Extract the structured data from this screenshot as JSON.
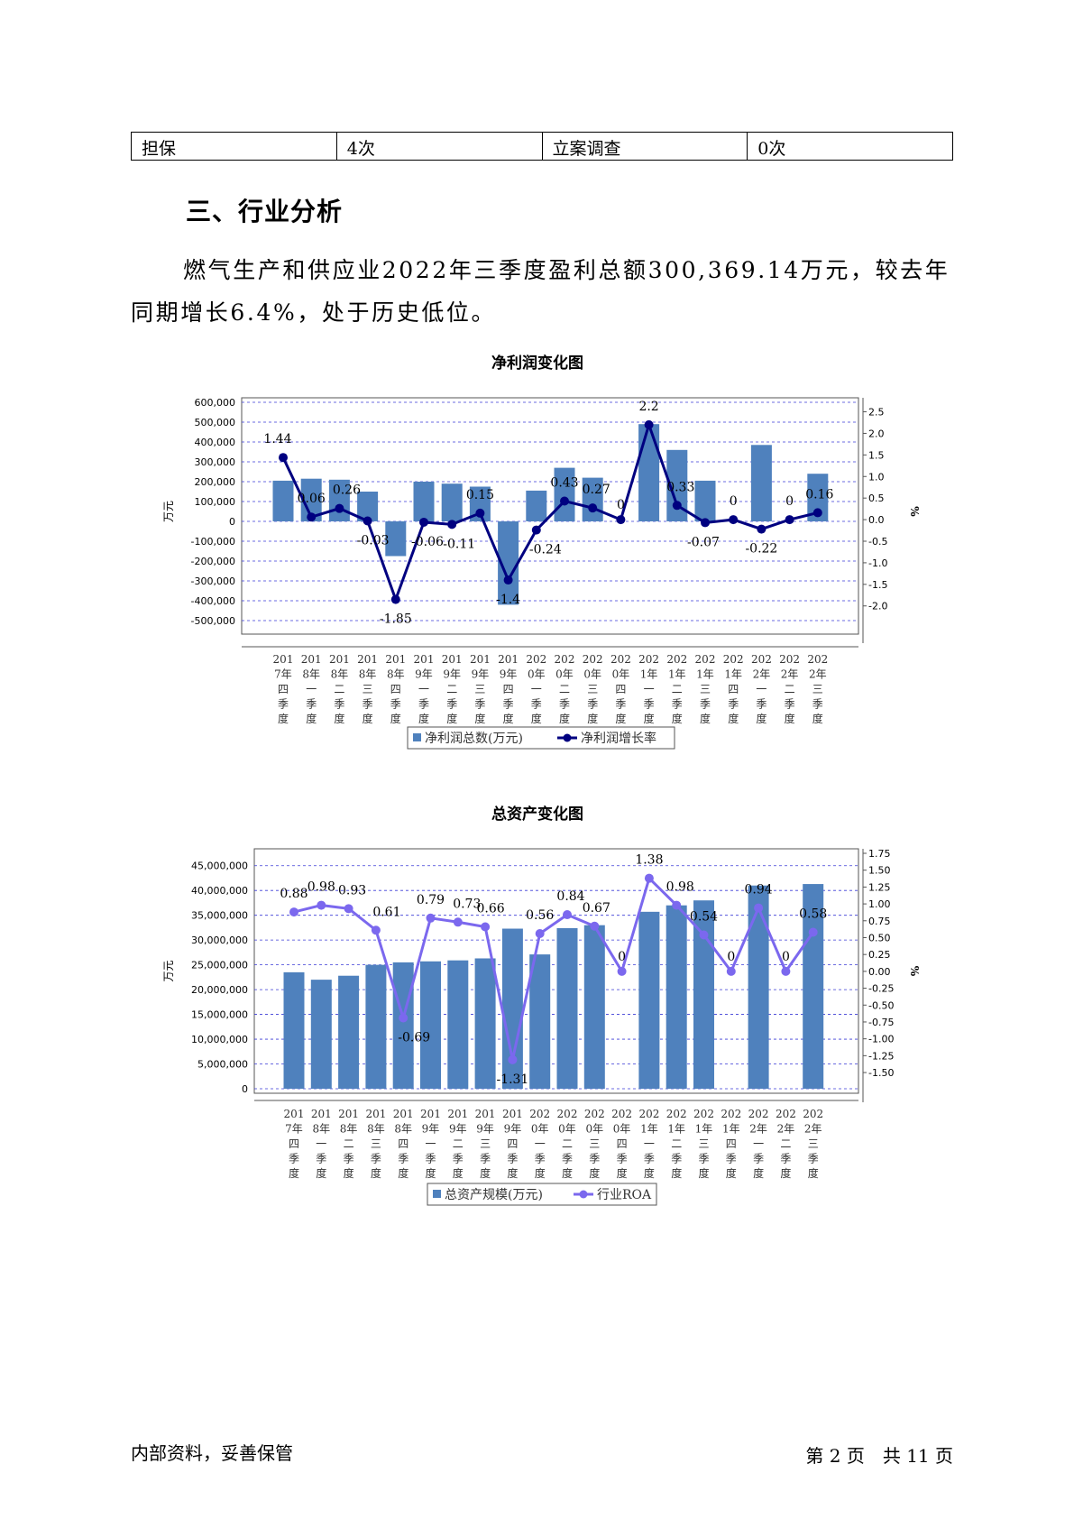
{
  "table": {
    "cells": [
      "担保",
      "4次",
      "立案调查",
      "0次"
    ]
  },
  "section": {
    "title": "三、行业分析",
    "paragraph": "燃气生产和供应业2022年三季度盈利总额300,369.14万元，较去年同期增长6.4%，处于历史低位。"
  },
  "footer": {
    "left": "内部资料，妥善保管",
    "page_prefix": "第",
    "page_num": "2",
    "page_mid": "页　共",
    "page_total": "11",
    "page_suffix": "页"
  },
  "chart_data": [
    {
      "type": "bar+line",
      "title": "净利润变化图",
      "ylabel": "万元",
      "y2label": "%",
      "categories": [
        "2017年四季度",
        "2018年一季度",
        "2018年二季度",
        "2018年三季度",
        "2018年四季度",
        "2019年一季度",
        "2019年二季度",
        "2019年三季度",
        "2019年四季度",
        "2020年一季度",
        "2020年二季度",
        "2020年三季度",
        "2020年四季度",
        "2021年一季度",
        "2021年二季度",
        "2021年三季度",
        "2021年四季度",
        "2022年一季度",
        "2022年二季度",
        "2022年三季度"
      ],
      "ylim": [
        -500000,
        600000
      ],
      "y_ticks": [
        600000,
        500000,
        400000,
        300000,
        200000,
        100000,
        0,
        -100000,
        -200000,
        -300000,
        -400000,
        -500000
      ],
      "y_tick_labels": [
        "600,000",
        "500,000",
        "400,000",
        "300,000",
        "200,000",
        "100,000",
        "0",
        "-100,000",
        "-200,000",
        "-300,000",
        "-400,000",
        "-500,000"
      ],
      "y2lim": [
        -2.34,
        2.72
      ],
      "y2_ticks": [
        2.5,
        2.0,
        1.5,
        1.0,
        0.5,
        0.0,
        -0.5,
        -1.0,
        -1.5,
        -2.0
      ],
      "y2_tick_labels": [
        "2.5",
        "2.0",
        "1.5",
        "1.0",
        "0.5",
        "0.0",
        "-0.5",
        "-1.0",
        "-1.5",
        "-2.0"
      ],
      "series": [
        {
          "name": "净利润总数(万元)",
          "kind": "bar",
          "color": "#4f81bd",
          "values": [
            205000,
            215000,
            210000,
            150000,
            -175000,
            200000,
            190000,
            175000,
            -420000,
            155000,
            270000,
            220000,
            0,
            490000,
            360000,
            205000,
            0,
            385000,
            0,
            240000
          ]
        },
        {
          "name": "净利润增长率",
          "kind": "line",
          "color": "#000080",
          "values": [
            1.44,
            0.06,
            0.26,
            -0.03,
            -1.85,
            -0.06,
            -0.11,
            0.15,
            -1.4,
            -0.24,
            0.43,
            0.27,
            0,
            2.2,
            0.33,
            -0.07,
            0,
            -0.22,
            0,
            0.16
          ],
          "labels": [
            "1.44",
            "0.06",
            "0.26",
            "-0.03",
            "-1.85",
            "-0.06",
            "-0.11",
            "0.15",
            "-1.4",
            "-0.24",
            "0.43",
            "0.27",
            "0",
            "2.2",
            "0.33",
            "-0.07",
            "0",
            "-0.22",
            "0",
            "0.16"
          ]
        }
      ],
      "legend": "bottom",
      "grid": true
    },
    {
      "type": "bar+line",
      "title": "总资产变化图",
      "ylabel": "万元",
      "y2label": "%",
      "categories": [
        "2017年四季度",
        "2018年一季度",
        "2018年二季度",
        "2018年三季度",
        "2018年四季度",
        "2019年一季度",
        "2019年二季度",
        "2019年三季度",
        "2019年四季度",
        "2020年一季度",
        "2020年二季度",
        "2020年三季度",
        "2020年四季度",
        "2021年一季度",
        "2021年二季度",
        "2021年三季度",
        "2021年四季度",
        "2022年一季度",
        "2022年二季度",
        "2022年三季度"
      ],
      "ylim": [
        0,
        47500000
      ],
      "y_ticks": [
        45000000,
        40000000,
        35000000,
        30000000,
        25000000,
        20000000,
        15000000,
        10000000,
        5000000,
        0
      ],
      "y_tick_labels": [
        "45,000,000",
        "40,000,000",
        "35,000,000",
        "30,000,000",
        "25,000,000",
        "20,000,000",
        "15,000,000",
        "10,000,000",
        "5,000,000",
        "0"
      ],
      "y2lim": [
        -1.74,
        1.75
      ],
      "y2_ticks": [
        1.75,
        1.5,
        1.25,
        1.0,
        0.75,
        0.5,
        0.25,
        0.0,
        -0.25,
        -0.5,
        -0.75,
        -1.0,
        -1.25,
        -1.5
      ],
      "y2_tick_labels": [
        "1.75",
        "1.50",
        "1.25",
        "1.00",
        "0.75",
        "0.50",
        "0.25",
        "0.00",
        "-0.25",
        "-0.50",
        "-0.75",
        "-1.00",
        "-1.25",
        "-1.50"
      ],
      "series": [
        {
          "name": "总资产规模(万元)",
          "kind": "bar",
          "color": "#4f81bd",
          "values": [
            23500000,
            22000000,
            22800000,
            25000000,
            25500000,
            25700000,
            25900000,
            26300000,
            32300000,
            27100000,
            32400000,
            33000000,
            0,
            35700000,
            37000000,
            38000000,
            0,
            41000000,
            0,
            41300000
          ]
        },
        {
          "name": "行业ROA",
          "kind": "line",
          "color": "#7b68ee",
          "values": [
            0.88,
            0.98,
            0.93,
            0.61,
            -0.69,
            0.79,
            0.73,
            0.66,
            -1.31,
            0.56,
            0.84,
            0.67,
            0,
            1.38,
            0.98,
            0.54,
            0,
            0.94,
            0,
            0.58
          ],
          "labels": [
            "0.88",
            "0.98",
            "0.93",
            "0.61",
            "-0.69",
            "0.79",
            "0.73",
            "0.66",
            "-1.31",
            "0.56",
            "0.84",
            "0.67",
            "0",
            "1.38",
            "0.98",
            "0.54",
            "0",
            "0.94",
            "0",
            "0.58"
          ]
        }
      ],
      "legend": "bottom",
      "grid": true
    }
  ]
}
